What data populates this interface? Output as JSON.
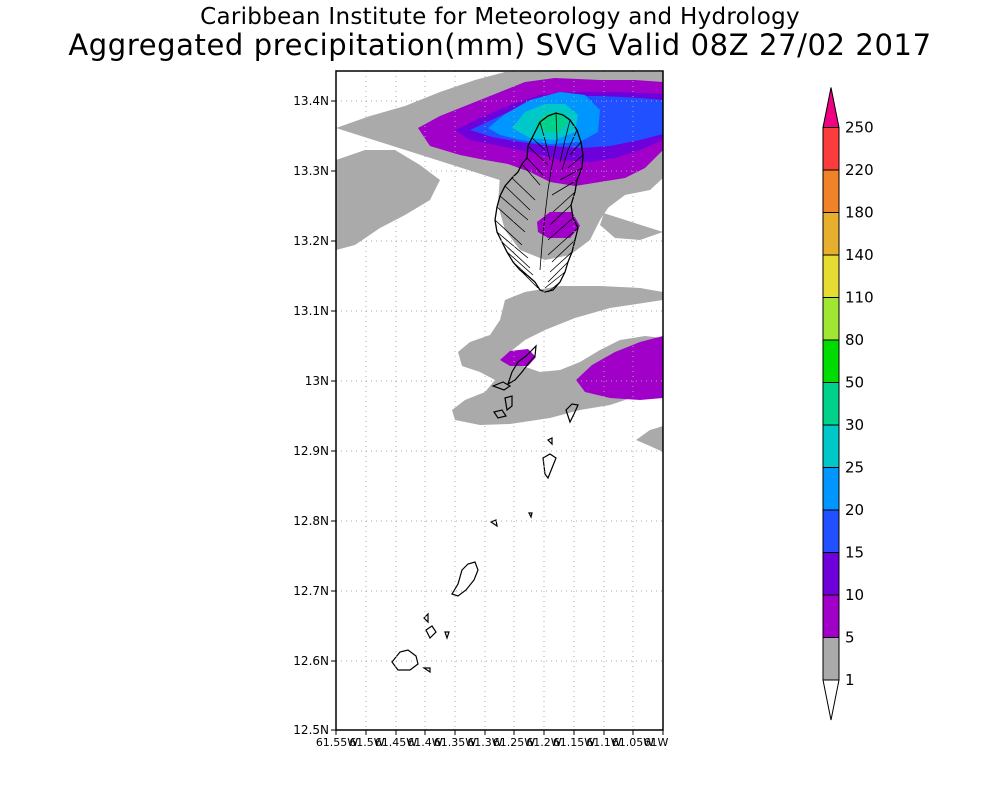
{
  "header": {
    "institution": "Caribbean Institute for Meteorology and Hydrology",
    "product": "Aggregated precipitation(mm) SVG Valid 08Z 27/02 2017"
  },
  "map": {
    "lat_ticks": [
      "13.4N",
      "13.3N",
      "13.2N",
      "13.1N",
      "13N",
      "12.9N",
      "12.8N",
      "12.7N",
      "12.6N",
      "12.5N"
    ],
    "lon_ticks": [
      "61.55W",
      "61.5W",
      "61.45W",
      "61.4W",
      "61.35W",
      "61.3W",
      "61.25W",
      "61.2W",
      "61.15W",
      "61.1W",
      "61.05W",
      "61W"
    ],
    "lat_range": [
      12.5,
      13.45
    ],
    "lon_range": [
      -61.55,
      -61.0
    ],
    "grid": "dotted"
  },
  "legend": {
    "levels": [
      "1",
      "5",
      "10",
      "15",
      "20",
      "25",
      "30",
      "50",
      "80",
      "110",
      "140",
      "180",
      "220",
      "250"
    ],
    "colors": [
      "#aaaaaa",
      "#a000c8",
      "#6e00dc",
      "#2050ff",
      "#0096ff",
      "#00c8c8",
      "#00d28c",
      "#00dc00",
      "#a0e632",
      "#e6dc32",
      "#e6af2d",
      "#f08228",
      "#fa3c3c",
      "#f00082"
    ]
  },
  "colors": {
    "light_rain": "#aaaaaa",
    "moderate_rain": "#a000c8",
    "heavy_rain": "#2050ff",
    "very_heavy_rain": "#0096ff",
    "coast": "#000000",
    "grid": "#aaaaaa"
  }
}
